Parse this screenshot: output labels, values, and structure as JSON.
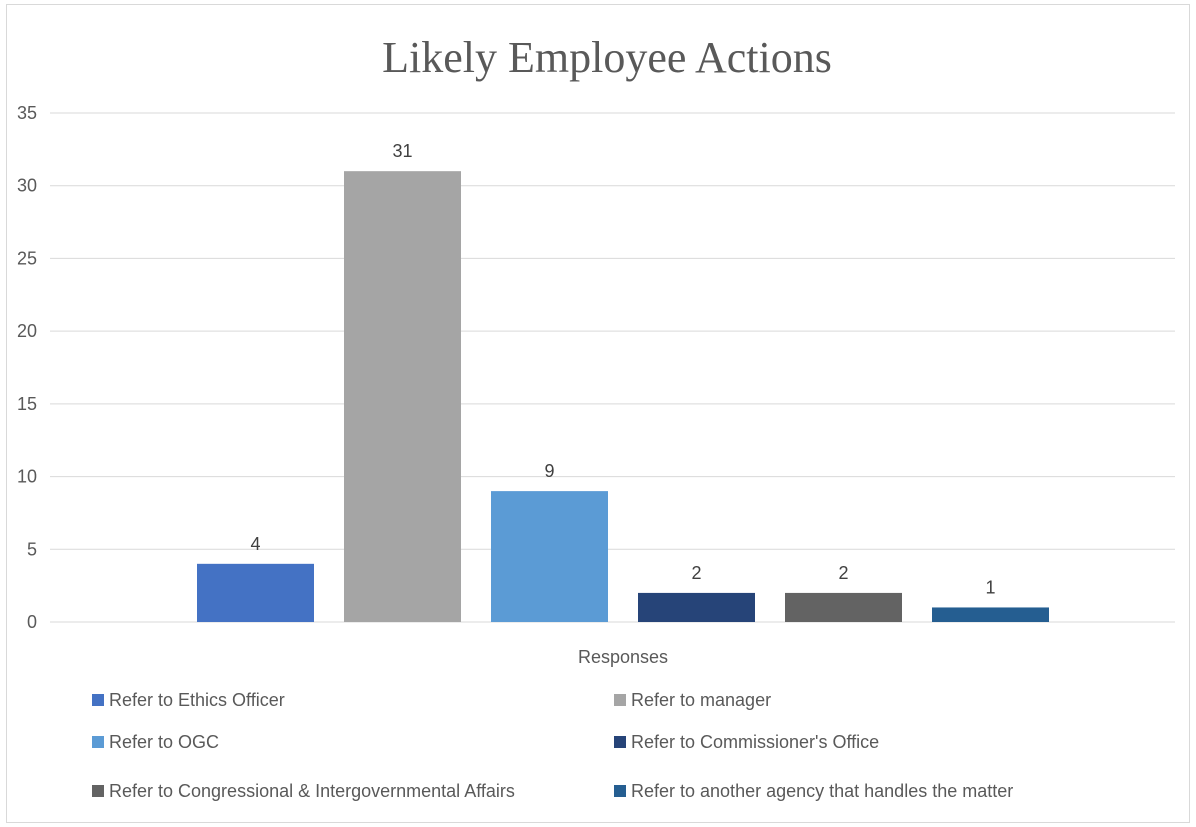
{
  "chart_data": {
    "type": "bar",
    "title": "Likely Employee Actions",
    "xlabel": "Responses",
    "ylabel": "",
    "ylim": [
      0,
      35
    ],
    "yticks": [
      0,
      5,
      10,
      15,
      20,
      25,
      30,
      35
    ],
    "grid": true,
    "legend_position": "bottom",
    "categories": [
      "Responses"
    ],
    "series": [
      {
        "name": "Refer to Ethics Officer",
        "values": [
          4
        ],
        "color": "#4472c4"
      },
      {
        "name": "Refer to manager",
        "values": [
          31
        ],
        "color": "#a5a5a5"
      },
      {
        "name": "Refer to OGC",
        "values": [
          9
        ],
        "color": "#5b9bd5"
      },
      {
        "name": "Refer to Commissioner's Office",
        "values": [
          2
        ],
        "color": "#264478"
      },
      {
        "name": "Refer to Congressional & Intergovernmental Affairs",
        "values": [
          2
        ],
        "color": "#636363"
      },
      {
        "name": "Refer to another agency that handles the matter",
        "values": [
          1
        ],
        "color": "#255e91"
      }
    ]
  }
}
